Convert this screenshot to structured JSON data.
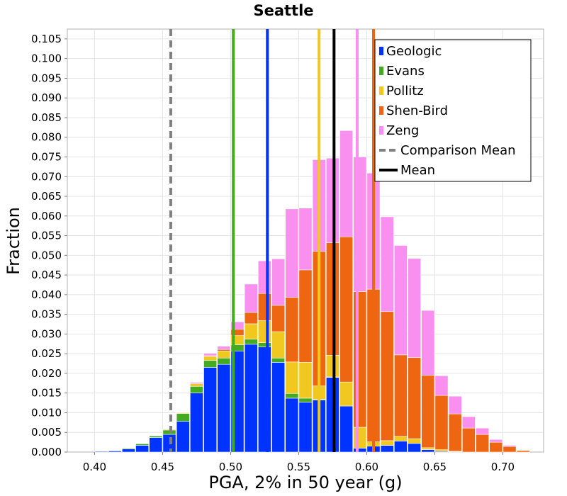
{
  "chart_data": {
    "type": "bar",
    "stacked": true,
    "title": "Seattle",
    "xlabel": "PGA, 2% in 50 year (g)",
    "ylabel": "Fraction",
    "xlim": [
      0.38,
      0.73
    ],
    "ylim": [
      0,
      0.1075
    ],
    "xticks": [
      "0.40",
      "0.45",
      "0.50",
      "0.55",
      "0.60",
      "0.65",
      "0.70"
    ],
    "xtick_values": [
      0.4,
      0.45,
      0.5,
      0.55,
      0.6,
      0.65,
      0.7
    ],
    "yticks": [
      "0.000",
      "0.005",
      "0.010",
      "0.015",
      "0.020",
      "0.025",
      "0.030",
      "0.035",
      "0.040",
      "0.045",
      "0.050",
      "0.055",
      "0.060",
      "0.065",
      "0.070",
      "0.075",
      "0.080",
      "0.085",
      "0.090",
      "0.095",
      "0.100",
      "0.105"
    ],
    "ytick_values": [
      0,
      0.005,
      0.01,
      0.015,
      0.02,
      0.025,
      0.03,
      0.035,
      0.04,
      0.045,
      0.05,
      0.055,
      0.06,
      0.065,
      0.07,
      0.075,
      0.08,
      0.085,
      0.09,
      0.095,
      0.1,
      0.105
    ],
    "grid": true,
    "legend_position": "top-right",
    "bin_width": 0.01,
    "bin_starts": [
      0.4,
      0.41,
      0.42,
      0.43,
      0.44,
      0.45,
      0.46,
      0.47,
      0.48,
      0.49,
      0.5,
      0.51,
      0.52,
      0.53,
      0.54,
      0.55,
      0.56,
      0.57,
      0.58,
      0.59,
      0.6,
      0.61,
      0.62,
      0.63,
      0.64,
      0.65,
      0.66,
      0.67,
      0.68,
      0.69,
      0.7,
      0.71
    ],
    "series": [
      {
        "name": "Geologic",
        "color": "#0033ff",
        "values": [
          0.0002,
          0.0003,
          0.0008,
          0.0017,
          0.0037,
          0.0045,
          0.0078,
          0.015,
          0.0215,
          0.0223,
          0.0257,
          0.0274,
          0.0267,
          0.0228,
          0.0137,
          0.0127,
          0.0132,
          0.019,
          0.0117,
          0.001,
          0.0015,
          0.0017,
          0.0028,
          0.0022,
          0.0006,
          0.0002,
          0.0001,
          0,
          0,
          0,
          0,
          0
        ]
      },
      {
        "name": "Evans",
        "color": "#44aa22",
        "values": [
          0.0001,
          0.0001,
          0.0002,
          0.0004,
          0.0004,
          0.0011,
          0.002,
          0.0017,
          0.0018,
          0.0016,
          0.0016,
          0.0013,
          0.0011,
          0.0011,
          0.0012,
          0.001,
          0.0002,
          0.0001,
          0,
          0,
          0,
          0,
          0,
          0,
          0,
          0,
          0,
          0,
          0,
          0,
          0,
          0
        ]
      },
      {
        "name": "Pollitz",
        "color": "#f0c820",
        "values": [
          0,
          0,
          0,
          0,
          0,
          0.0002,
          0.0002,
          0.0007,
          0.001,
          0.0018,
          0.0023,
          0.0039,
          0.0056,
          0.0067,
          0.008,
          0.0091,
          0.0034,
          0.0055,
          0.0061,
          0.0053,
          0.0011,
          0.0012,
          0.0012,
          0.0012,
          0.0005,
          0.0004,
          0.0001,
          0,
          0,
          0,
          0,
          0
        ]
      },
      {
        "name": "Shen-Bird",
        "color": "#ee6611",
        "values": [
          0,
          0,
          0,
          0,
          0,
          0,
          0,
          0,
          0.0002,
          0.0004,
          0.0016,
          0.0029,
          0.0069,
          0.0067,
          0.0164,
          0.0235,
          0.0342,
          0.0286,
          0.0369,
          0.0345,
          0.0388,
          0.0328,
          0.0207,
          0.0206,
          0.0184,
          0.0138,
          0.0095,
          0.0061,
          0.0045,
          0.0025,
          0.0014,
          0.0004
        ]
      },
      {
        "name": "Zeng",
        "color": "#f990f0",
        "values": [
          0,
          0,
          0,
          0,
          0,
          0,
          0,
          0.0003,
          0.0006,
          0.0008,
          0.0019,
          0.0072,
          0.0083,
          0.0118,
          0.0225,
          0.0157,
          0.0233,
          0.0215,
          0.027,
          0.0342,
          0.0295,
          0.0241,
          0.0278,
          0.0252,
          0.0165,
          0.005,
          0.0045,
          0.0029,
          0.0016,
          0.0007,
          0.0003,
          0
        ]
      }
    ],
    "vertical_lines": [
      {
        "name": "Geologic",
        "x": 0.527,
        "color": "#0033ff",
        "style": "solid"
      },
      {
        "name": "Evans",
        "x": 0.502,
        "color": "#44aa22",
        "style": "solid"
      },
      {
        "name": "Pollitz",
        "x": 0.565,
        "color": "#f0c820",
        "style": "solid"
      },
      {
        "name": "Shen-Bird",
        "x": 0.605,
        "color": "#ee6611",
        "style": "solid"
      },
      {
        "name": "Zeng",
        "x": 0.593,
        "color": "#f990f0",
        "style": "solid"
      },
      {
        "name": "Comparison Mean",
        "x": 0.456,
        "color": "#808080",
        "style": "dashed"
      },
      {
        "name": "Mean",
        "x": 0.576,
        "color": "#000000",
        "style": "solid"
      }
    ],
    "legend": [
      {
        "label": "Geologic",
        "color": "#0033ff",
        "kind": "swatch"
      },
      {
        "label": "Evans",
        "color": "#44aa22",
        "kind": "swatch"
      },
      {
        "label": "Pollitz",
        "color": "#f0c820",
        "kind": "swatch"
      },
      {
        "label": "Shen-Bird",
        "color": "#ee6611",
        "kind": "swatch"
      },
      {
        "label": "Zeng",
        "color": "#f990f0",
        "kind": "swatch"
      },
      {
        "label": "Comparison Mean",
        "color": "#808080",
        "kind": "dashed-line"
      },
      {
        "label": "Mean",
        "color": "#000000",
        "kind": "line"
      }
    ]
  }
}
